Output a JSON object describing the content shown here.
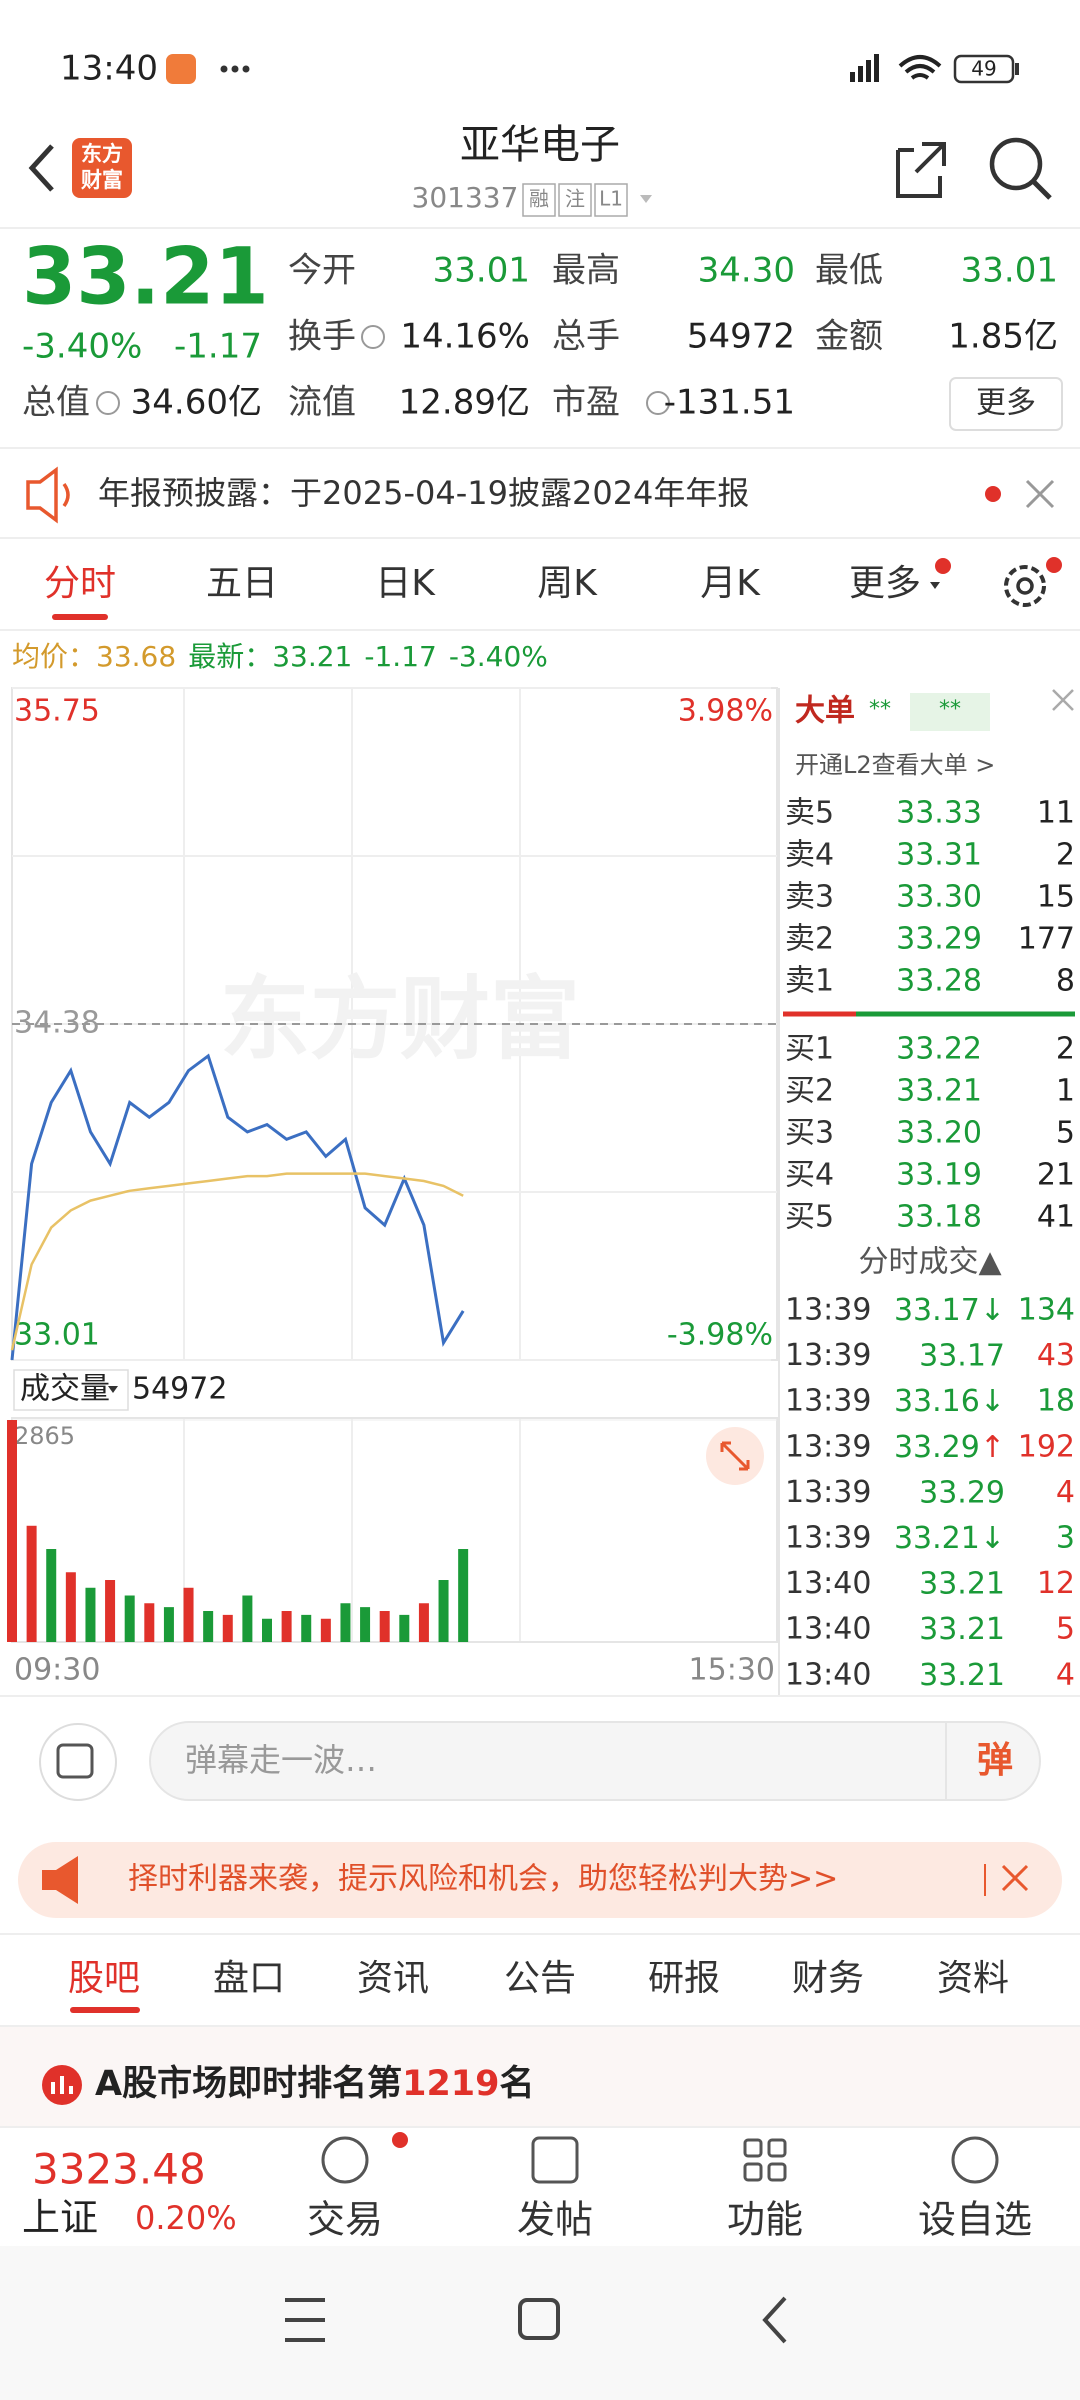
{
  "status_bar": {
    "time": "13:40",
    "battery": "49"
  },
  "header": {
    "logo": [
      "东方",
      "财富"
    ],
    "title": "亚华电子",
    "code": "301337",
    "tags": [
      "融",
      "注",
      "L1"
    ]
  },
  "quote": {
    "price": "33.21",
    "change_pct": "-3.40%",
    "change": "-1.17",
    "color": "#1a9a38",
    "fields": [
      {
        "label": "今开",
        "value": "33.01",
        "color": "#1a9a38"
      },
      {
        "label": "最高",
        "value": "34.30",
        "color": "#1a9a38"
      },
      {
        "label": "最低",
        "value": "33.01",
        "color": "#1a9a38"
      },
      {
        "label": "换手",
        "value": "14.16%"
      },
      {
        "label": "总手",
        "value": "54972"
      },
      {
        "label": "金额",
        "value": "1.85亿"
      },
      {
        "label": "总值",
        "value": "34.60亿"
      },
      {
        "label": "流值",
        "value": "12.89亿"
      },
      {
        "label": "市盈",
        "value": "-131.51"
      }
    ],
    "more": "更多"
  },
  "notice": {
    "text": "年报预披露：于2025-04-19披露2024年年报"
  },
  "tabs": {
    "items": [
      "分时",
      "五日",
      "日K",
      "周K",
      "月K",
      "更多"
    ],
    "active": 0
  },
  "info_line": {
    "avg_label": "均价：",
    "avg": "33.68",
    "latest_label": "最新：",
    "latest": "33.21",
    "change": "-1.17",
    "change_pct": "-3.40%"
  },
  "watermark": "东方财富",
  "chart_data": [
    {
      "type": "line",
      "categories": [
        null,
        null,
        null,
        null,
        null,
        null,
        null,
        null,
        null,
        null,
        null,
        null,
        null,
        null,
        null,
        null,
        null,
        null,
        null,
        null,
        null,
        null,
        null,
        null,
        null,
        null,
        null,
        null,
        null,
        null,
        null,
        null,
        null,
        null,
        null,
        null,
        null,
        null,
        null,
        null
      ],
      "series": [
        {
          "color": "#3b6fc2",
          "values": [
            33.01,
            33.81,
            34.06,
            34.19,
            33.94,
            33.81,
            34.06,
            34.0,
            34.06,
            34.19,
            34.25,
            34.0,
            33.94,
            33.97,
            33.91,
            33.94,
            33.84,
            33.91,
            33.63,
            33.56,
            33.75,
            33.56,
            33.08,
            33.21,
            null,
            null,
            null,
            null,
            null,
            null,
            null,
            null,
            null,
            null,
            null,
            null,
            null,
            null,
            null,
            null
          ]
        },
        {
          "color": "#e8c266",
          "values": [
            33.05,
            33.4,
            33.55,
            33.62,
            33.66,
            33.68,
            33.7,
            33.71,
            33.72,
            33.73,
            33.74,
            33.75,
            33.76,
            33.76,
            33.77,
            33.77,
            33.77,
            33.77,
            33.77,
            33.76,
            33.75,
            33.74,
            33.72,
            33.68,
            null,
            null,
            null,
            null,
            null,
            null,
            null,
            null,
            null,
            null,
            null,
            null,
            null,
            null,
            null,
            null
          ]
        }
      ],
      "ylim": [
        33.01,
        35.75
      ],
      "yticks": [
        33.01,
        34.38,
        35.75
      ],
      "reference": 34.38,
      "up_color": "#e0312a",
      "down_color": "#1a9a38",
      "flat_color": "#999999",
      "y2lim": [
        -3.98,
        3.98
      ],
      "y2ticks": [
        {
          "value": -3.98,
          "label": "-3.98%"
        },
        {
          "value": 3.98,
          "label": "3.98%"
        }
      ]
    },
    {
      "type": "bar",
      "label": "成交量",
      "total": "54972",
      "categories": [
        null,
        null,
        null,
        null,
        null,
        null,
        null,
        null,
        null,
        null,
        null,
        null,
        null,
        null,
        null,
        null,
        null,
        null,
        null,
        null,
        null,
        null,
        null,
        null,
        null,
        null,
        null,
        null,
        null,
        null,
        null,
        null,
        null,
        null,
        null,
        null,
        null,
        null,
        null,
        null
      ],
      "values": [
        2865,
        1500,
        1200,
        900,
        700,
        800,
        600,
        500,
        450,
        700,
        400,
        350,
        600,
        300,
        400,
        350,
        300,
        500,
        450,
        400,
        350,
        500,
        800,
        1200,
        null,
        null,
        null,
        null,
        null,
        null,
        null,
        null,
        null,
        null,
        null,
        null,
        null,
        null,
        null,
        null
      ],
      "colors": [
        "#e0312a",
        "#e0312a",
        "#1a9a38",
        "#e0312a",
        "#1a9a38",
        "#e0312a",
        "#1a9a38",
        "#e0312a",
        "#1a9a38",
        "#e0312a",
        "#1a9a38",
        "#e0312a",
        "#1a9a38",
        "#1a9a38",
        "#e0312a",
        "#1a9a38",
        "#e0312a",
        "#1a9a38",
        "#1a9a38",
        "#e0312a",
        "#1a9a38",
        "#e0312a",
        "#1a9a38",
        "#1a9a38"
      ],
      "ylim": [
        0,
        2865
      ],
      "yticks": [
        2865
      ],
      "x_labels": [
        "09:30",
        "15:30"
      ]
    }
  ],
  "order_book": {
    "header": "大单",
    "header_marks": [
      "**",
      "**"
    ],
    "l2": "开通L2查看大单 >",
    "asks": [
      {
        "label": "卖5",
        "price": "33.33",
        "volume": "11"
      },
      {
        "label": "卖4",
        "price": "33.31",
        "volume": "2"
      },
      {
        "label": "卖3",
        "price": "33.30",
        "volume": "15"
      },
      {
        "label": "卖2",
        "price": "33.29",
        "volume": "177"
      },
      {
        "label": "卖1",
        "price": "33.28",
        "volume": "8"
      }
    ],
    "bids": [
      {
        "label": "买1",
        "price": "33.22",
        "volume": "2"
      },
      {
        "label": "买2",
        "price": "33.21",
        "volume": "1"
      },
      {
        "label": "买3",
        "price": "33.20",
        "volume": "5"
      },
      {
        "label": "买4",
        "price": "33.19",
        "volume": "21"
      },
      {
        "label": "买5",
        "price": "33.18",
        "volume": "41"
      }
    ],
    "price_color": "#1a9a38",
    "trades_title": "分时成交▲",
    "trades": [
      {
        "time": "13:39",
        "price": "33.17",
        "dir": "↓",
        "volume": "134",
        "color": "#1a9a38"
      },
      {
        "time": "13:39",
        "price": "33.17",
        "volume": "43",
        "color": "#e0312a"
      },
      {
        "time": "13:39",
        "price": "33.16",
        "dir": "↓",
        "volume": "18",
        "color": "#1a9a38"
      },
      {
        "time": "13:39",
        "price": "33.29",
        "dir": "↑",
        "volume": "192",
        "color": "#e0312a"
      },
      {
        "time": "13:39",
        "price": "33.29",
        "volume": "4",
        "color": "#e0312a"
      },
      {
        "time": "13:39",
        "price": "33.21",
        "dir": "↓",
        "volume": "3",
        "color": "#1a9a38"
      },
      {
        "time": "13:40",
        "price": "33.21",
        "volume": "12",
        "color": "#e0312a"
      },
      {
        "time": "13:40",
        "price": "33.21",
        "volume": "5",
        "color": "#e0312a"
      },
      {
        "time": "13:40",
        "price": "33.21",
        "volume": "4",
        "color": "#e0312a"
      }
    ]
  },
  "danmaku": {
    "placeholder": "弹幕走一波…",
    "button": "弹"
  },
  "banner": {
    "text": "择时利器来袭，提示风险和机会，助您轻松判大势>>"
  },
  "section_tabs": {
    "items": [
      "股吧",
      "盘口",
      "资讯",
      "公告",
      "研报",
      "财务",
      "资料"
    ],
    "active": 0
  },
  "rank": {
    "prefix": "A股市场即时排名第",
    "rank": "1219",
    "suffix": "名"
  },
  "bottom_bar": {
    "index_value": "3323.48",
    "index_name": "上证",
    "index_change": "0.20%",
    "items": [
      "交易",
      "发帖",
      "功能",
      "设自选"
    ]
  }
}
